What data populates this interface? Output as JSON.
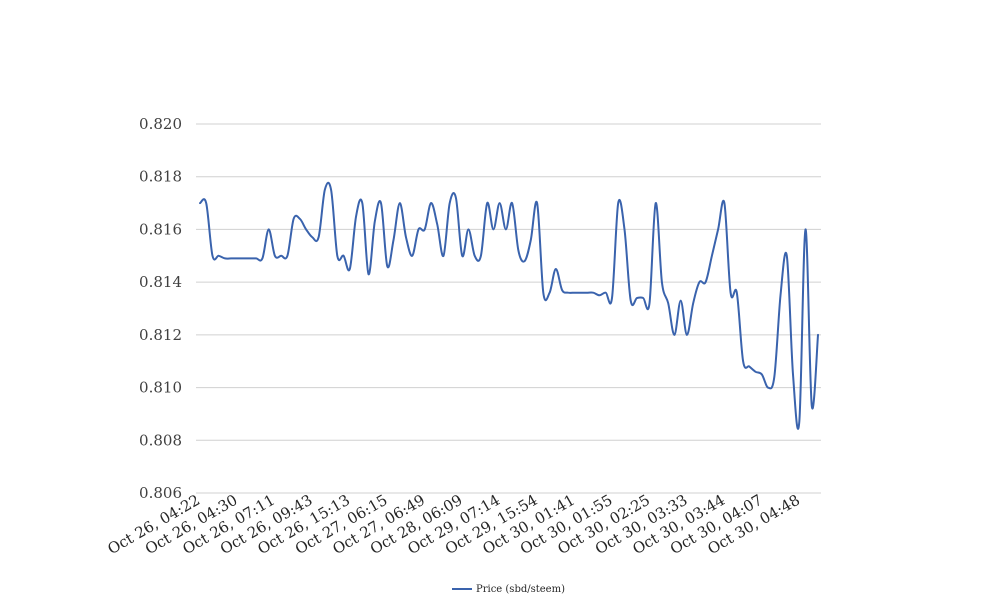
{
  "chart_data": {
    "type": "line",
    "title": "",
    "xlabel": "",
    "ylabel": "",
    "ylim": [
      0.806,
      0.82
    ],
    "yticks": [
      "0.820",
      "0.818",
      "0.816",
      "0.814",
      "0.812",
      "0.810",
      "0.808",
      "0.806"
    ],
    "xticks": [
      "Oct 26, 04:22",
      "Oct 26, 04:30",
      "Oct 26, 07:11",
      "Oct 26, 09:43",
      "Oct 26, 15:13",
      "Oct 27, 06:15",
      "Oct 27, 06:49",
      "Oct 28, 06:09",
      "Oct 29, 07:14",
      "Oct 29, 15:54",
      "Oct 30, 01:41",
      "Oct 30, 01:55",
      "Oct 30, 02:25",
      "Oct 30, 03:33",
      "Oct 30, 03:44",
      "Oct 30, 04:07",
      "Oct 30, 04:48"
    ],
    "grid": true,
    "legend_position": "bottom",
    "series": [
      {
        "name": "Price (sbd/steem)",
        "color": "#3a63ad",
        "values": [
          0.817,
          0.817,
          0.815,
          0.815,
          0.8149,
          0.8149,
          0.8149,
          0.8149,
          0.8149,
          0.8149,
          0.8149,
          0.816,
          0.815,
          0.815,
          0.815,
          0.8164,
          0.8164,
          0.816,
          0.8157,
          0.8157,
          0.8175,
          0.8175,
          0.815,
          0.815,
          0.8145,
          0.8165,
          0.817,
          0.8143,
          0.8163,
          0.817,
          0.8146,
          0.8156,
          0.817,
          0.8157,
          0.815,
          0.816,
          0.816,
          0.817,
          0.8162,
          0.815,
          0.817,
          0.8172,
          0.815,
          0.816,
          0.815,
          0.815,
          0.817,
          0.816,
          0.817,
          0.816,
          0.817,
          0.8152,
          0.8148,
          0.8156,
          0.817,
          0.8136,
          0.8136,
          0.8145,
          0.8137,
          0.8136,
          0.8136,
          0.8136,
          0.8136,
          0.8136,
          0.8135,
          0.8136,
          0.8134,
          0.817,
          0.816,
          0.8133,
          0.8134,
          0.8134,
          0.8132,
          0.817,
          0.814,
          0.8132,
          0.812,
          0.8133,
          0.812,
          0.8132,
          0.814,
          0.814,
          0.815,
          0.816,
          0.817,
          0.8136,
          0.8136,
          0.811,
          0.8108,
          0.8106,
          0.8105,
          0.81,
          0.8104,
          0.8135,
          0.815,
          0.8105,
          0.8087,
          0.816,
          0.8093,
          0.812
        ]
      }
    ]
  }
}
